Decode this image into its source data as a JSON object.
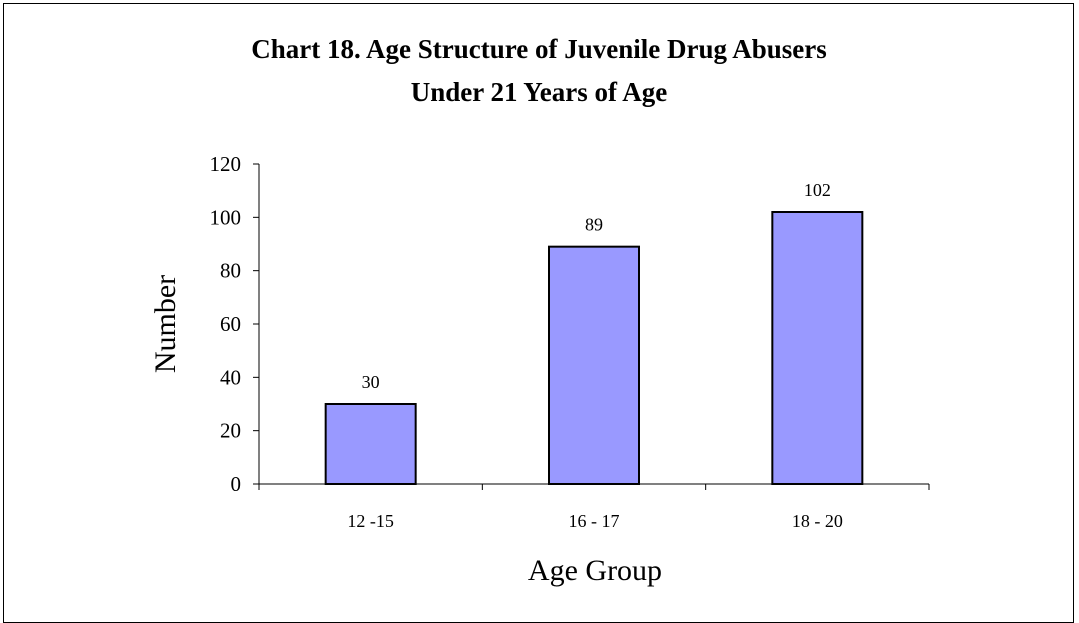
{
  "chart_data": {
    "type": "bar",
    "title": [
      "Chart 18. Age Structure of Juvenile Drug Abusers",
      "Under 21 Years of Age"
    ],
    "categories": [
      "12 -15",
      "16 - 17",
      "18 - 20"
    ],
    "values": [
      30,
      89,
      102
    ],
    "data_labels": [
      "30",
      "89",
      "102"
    ],
    "xlabel": "Age Group",
    "ylabel": "Number",
    "ylim": [
      0,
      120
    ],
    "yticks": [
      0,
      20,
      40,
      60,
      80,
      100,
      120
    ],
    "grid": false,
    "bar_color": "#9999FF",
    "bar_border_color": "#000000"
  }
}
